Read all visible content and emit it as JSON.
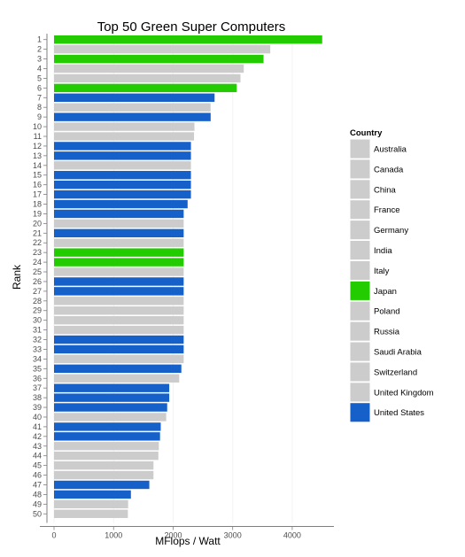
{
  "chart_data": {
    "type": "bar",
    "orientation": "horizontal",
    "title": "Top 50 Green Super Computers",
    "xlabel": "MFlops / Watt",
    "ylabel": "Rank",
    "xlim": [
      0,
      4700
    ],
    "xticks": [
      0,
      1000,
      2000,
      3000,
      4000
    ],
    "grid": false,
    "legend": {
      "title": "Country",
      "position": "right",
      "entries": [
        {
          "name": "Australia",
          "color": "#cccccc"
        },
        {
          "name": "Canada",
          "color": "#cccccc"
        },
        {
          "name": "China",
          "color": "#cccccc"
        },
        {
          "name": "France",
          "color": "#cccccc"
        },
        {
          "name": "Germany",
          "color": "#cccccc"
        },
        {
          "name": "India",
          "color": "#cccccc"
        },
        {
          "name": "Italy",
          "color": "#cccccc"
        },
        {
          "name": "Japan",
          "color": "#22cc00"
        },
        {
          "name": "Poland",
          "color": "#cccccc"
        },
        {
          "name": "Russia",
          "color": "#cccccc"
        },
        {
          "name": "Saudi Arabia",
          "color": "#cccccc"
        },
        {
          "name": "Switzerland",
          "color": "#cccccc"
        },
        {
          "name": "United Kingdom",
          "color": "#cccccc"
        },
        {
          "name": "United States",
          "color": "#1560c9"
        }
      ]
    },
    "bars": [
      {
        "rank": "1",
        "value": 4503,
        "country": "Japan"
      },
      {
        "rank": "2",
        "value": 3631,
        "country": "Other"
      },
      {
        "rank": "3",
        "value": 3518,
        "country": "Japan"
      },
      {
        "rank": "4",
        "value": 3186,
        "country": "Other"
      },
      {
        "rank": "5",
        "value": 3131,
        "country": "Other"
      },
      {
        "rank": "6",
        "value": 3068,
        "country": "Japan"
      },
      {
        "rank": "7",
        "value": 2696,
        "country": "United States"
      },
      {
        "rank": "8",
        "value": 2629,
        "country": "Other"
      },
      {
        "rank": "9",
        "value": 2630,
        "country": "United States"
      },
      {
        "rank": "10",
        "value": 2358,
        "country": "Other"
      },
      {
        "rank": "11",
        "value": 2351,
        "country": "Other"
      },
      {
        "rank": "12",
        "value": 2299,
        "country": "United States"
      },
      {
        "rank": "13",
        "value": 2299,
        "country": "United States"
      },
      {
        "rank": "14",
        "value": 2299,
        "country": "Other"
      },
      {
        "rank": "15",
        "value": 2299,
        "country": "United States"
      },
      {
        "rank": "16",
        "value": 2299,
        "country": "United States"
      },
      {
        "rank": "17",
        "value": 2299,
        "country": "United States"
      },
      {
        "rank": "18",
        "value": 2243,
        "country": "United States"
      },
      {
        "rank": "19",
        "value": 2177,
        "country": "United States"
      },
      {
        "rank": "20",
        "value": 2177,
        "country": "Other"
      },
      {
        "rank": "21",
        "value": 2177,
        "country": "United States"
      },
      {
        "rank": "22",
        "value": 2177,
        "country": "Other"
      },
      {
        "rank": "23",
        "value": 2177,
        "country": "Japan"
      },
      {
        "rank": "24",
        "value": 2177,
        "country": "Japan"
      },
      {
        "rank": "25",
        "value": 2177,
        "country": "Other"
      },
      {
        "rank": "26",
        "value": 2177,
        "country": "United States"
      },
      {
        "rank": "27",
        "value": 2177,
        "country": "United States"
      },
      {
        "rank": "28",
        "value": 2177,
        "country": "Other"
      },
      {
        "rank": "29",
        "value": 2177,
        "country": "Other"
      },
      {
        "rank": "30",
        "value": 2177,
        "country": "Other"
      },
      {
        "rank": "31",
        "value": 2177,
        "country": "Other"
      },
      {
        "rank": "32",
        "value": 2177,
        "country": "United States"
      },
      {
        "rank": "33",
        "value": 2177,
        "country": "United States"
      },
      {
        "rank": "34",
        "value": 2177,
        "country": "Other"
      },
      {
        "rank": "35",
        "value": 2138,
        "country": "United States"
      },
      {
        "rank": "36",
        "value": 2102,
        "country": "Other"
      },
      {
        "rank": "37",
        "value": 1935,
        "country": "United States"
      },
      {
        "rank": "38",
        "value": 1935,
        "country": "United States"
      },
      {
        "rank": "39",
        "value": 1900,
        "country": "United States"
      },
      {
        "rank": "40",
        "value": 1884,
        "country": "Other"
      },
      {
        "rank": "41",
        "value": 1792,
        "country": "United States"
      },
      {
        "rank": "42",
        "value": 1780,
        "country": "United States"
      },
      {
        "rank": "43",
        "value": 1760,
        "country": "Other"
      },
      {
        "rank": "44",
        "value": 1752,
        "country": "Other"
      },
      {
        "rank": "45",
        "value": 1670,
        "country": "Other"
      },
      {
        "rank": "46",
        "value": 1670,
        "country": "Other"
      },
      {
        "rank": "47",
        "value": 1600,
        "country": "United States"
      },
      {
        "rank": "48",
        "value": 1291,
        "country": "United States"
      },
      {
        "rank": "49",
        "value": 1244,
        "country": "Other"
      },
      {
        "rank": "50",
        "value": 1240,
        "country": "Other"
      }
    ]
  }
}
